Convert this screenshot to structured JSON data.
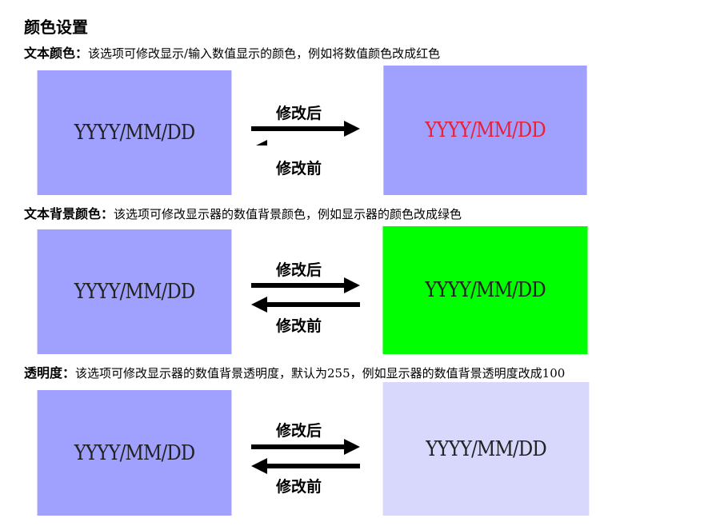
{
  "title": "颜色设置",
  "sections": [
    {
      "label": "文本颜色：",
      "description": "该选项可修改显示/输入数值显示的颜色，例如将数值颜色改成红色",
      "before": "YYYY/MM/DD",
      "after": "YYYY/MM/DD",
      "arrow_after": "修改后",
      "arrow_before": "修改前"
    },
    {
      "label": "文本背景颜色：",
      "description": "该选项可修改显示器的数值背景颜色，例如显示器的颜色改成绿色",
      "before": "YYYY/MM/DD",
      "after": "YYYY/MM/DD",
      "arrow_after": "修改后",
      "arrow_before": "修改前"
    },
    {
      "label": "透明度：",
      "description": "该选项可修改显示器的数值背景透明度，默认为255，例如显示器的数值背景透明度改成100",
      "before": "YYYY/MM/DD",
      "after": "YYYY/MM/DD",
      "arrow_after": "修改后",
      "arrow_before": "修改前"
    }
  ]
}
